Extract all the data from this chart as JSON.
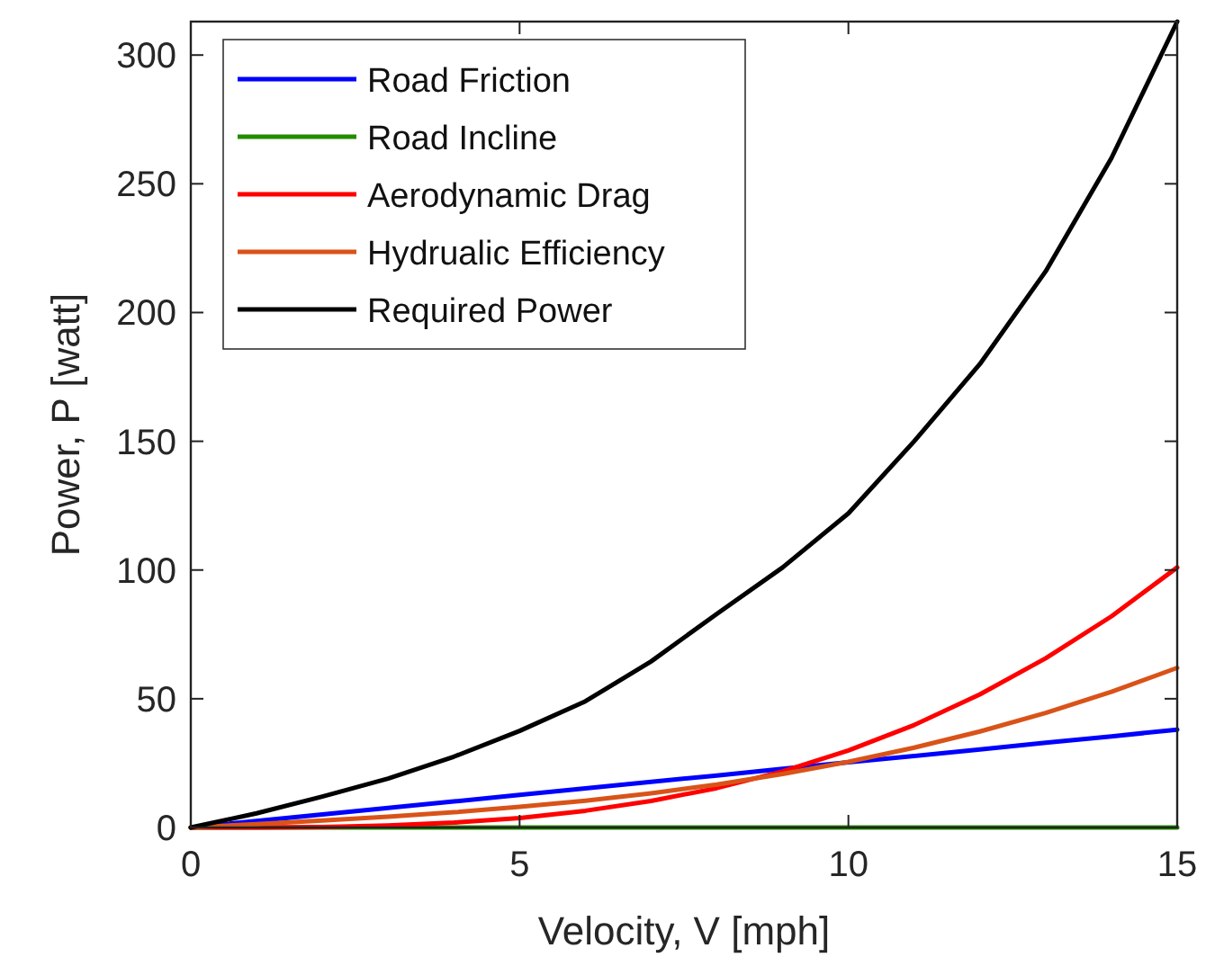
{
  "chart_data": {
    "type": "line",
    "xlabel": "Velocity, V [mph]",
    "ylabel": "Power, P [watt]",
    "x": [
      0,
      1,
      2,
      3,
      4,
      5,
      6,
      7,
      8,
      9,
      10,
      11,
      12,
      13,
      14,
      15
    ],
    "xlim": [
      0,
      15
    ],
    "xticks": [
      0,
      5,
      10,
      15
    ],
    "ylim": [
      0,
      313
    ],
    "yticks": [
      0,
      50,
      100,
      150,
      200,
      250,
      300
    ],
    "grid": false,
    "legend": "top left",
    "line_style": "solid",
    "marker": "none",
    "series": [
      {
        "name": "Road Friction",
        "color": "#0000ff",
        "values": [
          0,
          2.5,
          5.1,
          7.6,
          10.1,
          12.7,
          15.2,
          17.7,
          20.2,
          22.8,
          25.3,
          27.8,
          30.3,
          32.9,
          35.4,
          38
        ]
      },
      {
        "name": "Road Incline",
        "color": "#228b00",
        "values": [
          0,
          0,
          0,
          0,
          0,
          0,
          0,
          0,
          0,
          0,
          0,
          0,
          0,
          0,
          0,
          0
        ]
      },
      {
        "name": "Aerodynamic Drag",
        "color": "#ff0000",
        "values": [
          0,
          0,
          0.2,
          0.8,
          1.9,
          3.7,
          6.5,
          10.3,
          15.3,
          21.8,
          29.9,
          39.8,
          51.7,
          65.7,
          82,
          101
        ]
      },
      {
        "name": "Hydrualic Efficiency",
        "color": "#d95319",
        "values": [
          0,
          1.3,
          2.7,
          4.2,
          5.9,
          8,
          10.4,
          13.3,
          16.7,
          20.8,
          25.5,
          31,
          37.3,
          44.5,
          52.7,
          62
        ]
      },
      {
        "name": "Required Power",
        "color": "#000000",
        "values": [
          0,
          5.5,
          12,
          19,
          27.5,
          37.5,
          49,
          64.5,
          83,
          101,
          122,
          150,
          180,
          216,
          260,
          313
        ]
      }
    ]
  }
}
